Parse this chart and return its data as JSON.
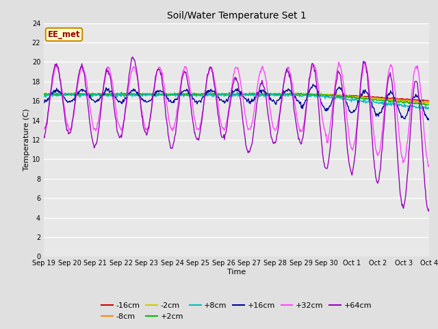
{
  "title": "Soil/Water Temperature Set 1",
  "xlabel": "Time",
  "ylabel": "Temperature (C)",
  "ylim": [
    0,
    24
  ],
  "yticks": [
    0,
    2,
    4,
    6,
    8,
    10,
    12,
    14,
    16,
    18,
    20,
    22,
    24
  ],
  "bg_color": "#e0e0e0",
  "plot_bg_color": "#e8e8e8",
  "grid_color": "#ffffff",
  "annotation_text": "EE_met",
  "annotation_bg": "#ffffcc",
  "annotation_border": "#cc8800",
  "annotation_text_color": "#990000",
  "series": {
    "-16cm": {
      "color": "#cc0000",
      "lw": 1.0
    },
    "-8cm": {
      "color": "#ff8800",
      "lw": 1.0
    },
    "-2cm": {
      "color": "#cccc00",
      "lw": 1.0
    },
    "+2cm": {
      "color": "#00bb00",
      "lw": 1.0
    },
    "+8cm": {
      "color": "#00bbbb",
      "lw": 1.0
    },
    "+16cm": {
      "color": "#000099",
      "lw": 1.0
    },
    "+32cm": {
      "color": "#ff44ff",
      "lw": 1.0
    },
    "+64cm": {
      "color": "#9900bb",
      "lw": 1.0
    }
  },
  "x_start": 0,
  "x_end": 15,
  "xtick_labels": [
    "Sep 19",
    "Sep 20",
    "Sep 21",
    "Sep 22",
    "Sep 23",
    "Sep 24",
    "Sep 25",
    "Sep 26",
    "Sep 27",
    "Sep 28",
    "Sep 29",
    "Sep 30",
    "Oct 1",
    "Oct 2",
    "Oct 3",
    "Oct 4"
  ],
  "xtick_positions": [
    0,
    1,
    2,
    3,
    4,
    5,
    6,
    7,
    8,
    9,
    10,
    11,
    12,
    13,
    14,
    15
  ]
}
